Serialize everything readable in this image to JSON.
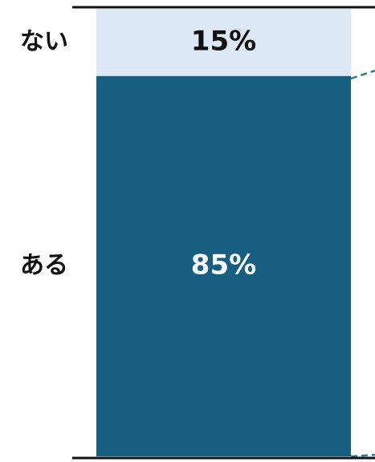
{
  "chart_data": {
    "type": "bar",
    "stacked": true,
    "categories": [
      null
    ],
    "series": [
      {
        "name": "ある",
        "color": "#175f80",
        "values": [
          85
        ],
        "value_labels": [
          "85%"
        ],
        "label_color": "#ffffff"
      },
      {
        "name": "ない",
        "color": "#dce9f5",
        "values": [
          15
        ],
        "value_labels": [
          "15%"
        ],
        "label_color": "#111111"
      }
    ],
    "ylim": [
      0,
      100
    ]
  }
}
